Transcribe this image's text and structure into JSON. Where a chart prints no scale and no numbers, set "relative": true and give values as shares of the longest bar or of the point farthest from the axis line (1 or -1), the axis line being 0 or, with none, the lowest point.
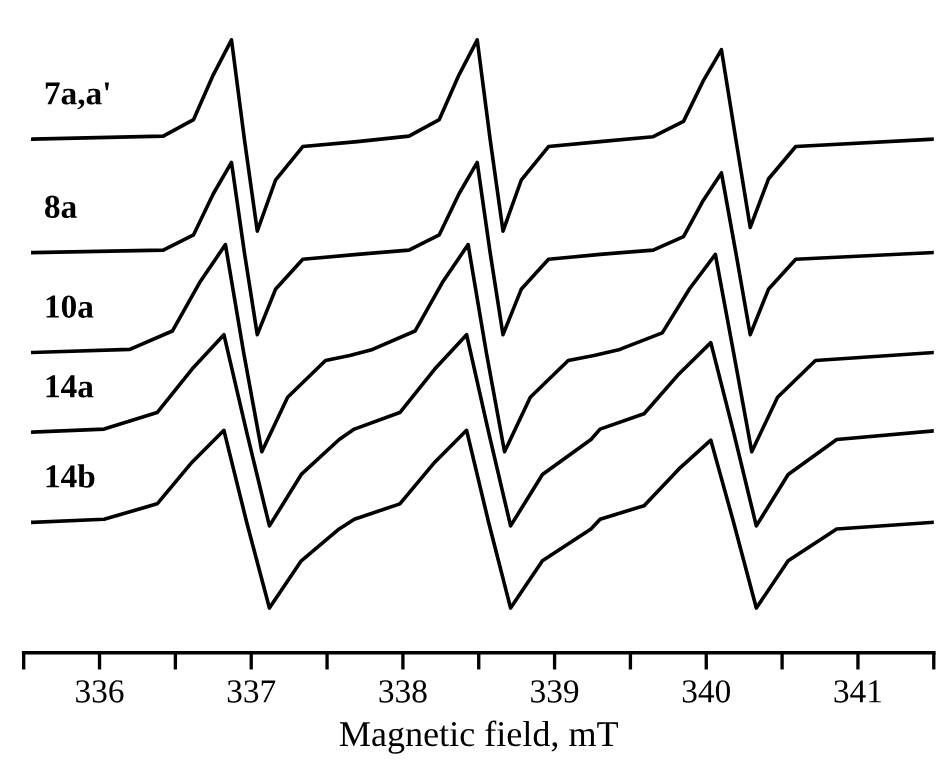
{
  "chart_data": {
    "type": "line",
    "relative": true,
    "xlabel": "Magnetic field, mT",
    "xlim": [
      335.5,
      341.5
    ],
    "xticks": [
      {
        "value": 335.5,
        "label": null
      },
      336,
      {
        "value": 336.5,
        "label": null
      },
      337,
      {
        "value": 337.5,
        "label": null
      },
      338,
      {
        "value": 338.5,
        "label": null
      },
      339,
      {
        "value": 339.5,
        "label": null
      },
      340,
      {
        "value": 340.5,
        "label": null
      },
      341,
      {
        "value": 341.5,
        "label": null
      }
    ],
    "grid": false,
    "legend": false,
    "marker": "none",
    "line_style": "solid",
    "series": [
      {
        "name": "7a,a'",
        "color": "#000000",
        "x": [
          335.56,
          336.42,
          336.62,
          336.75,
          336.87,
          336.955,
          337.04,
          337.16,
          337.34,
          337.7,
          338.04,
          338.24,
          338.37,
          338.49,
          338.575,
          338.66,
          338.78,
          338.96,
          339.3,
          339.65,
          339.85,
          339.98,
          340.1,
          340.195,
          340.29,
          340.41,
          340.59,
          341.5
        ],
        "values": [
          0.838,
          0.843,
          0.87,
          0.943,
          1.0,
          0.838,
          0.688,
          0.771,
          0.826,
          0.834,
          0.843,
          0.87,
          0.943,
          1.0,
          0.838,
          0.688,
          0.771,
          0.826,
          0.834,
          0.842,
          0.867,
          0.933,
          0.984,
          0.838,
          0.694,
          0.773,
          0.826,
          0.838
        ]
      },
      {
        "name": "8a",
        "color": "#000000",
        "x": [
          335.56,
          336.42,
          336.62,
          336.75,
          336.87,
          336.955,
          337.04,
          337.16,
          337.34,
          337.7,
          338.04,
          338.24,
          338.37,
          338.49,
          338.575,
          338.66,
          338.78,
          338.96,
          339.3,
          339.65,
          339.85,
          339.98,
          340.1,
          340.195,
          340.29,
          340.41,
          340.59,
          341.5
        ],
        "values": [
          0.653,
          0.657,
          0.682,
          0.749,
          0.8,
          0.653,
          0.519,
          0.593,
          0.642,
          0.65,
          0.657,
          0.682,
          0.749,
          0.8,
          0.653,
          0.519,
          0.593,
          0.642,
          0.65,
          0.657,
          0.679,
          0.738,
          0.783,
          0.653,
          0.519,
          0.593,
          0.642,
          0.653
        ]
      },
      {
        "name": "10a",
        "color": "#000000",
        "x": [
          335.56,
          336.2,
          336.48,
          336.66,
          336.83,
          336.95,
          337.07,
          337.24,
          337.49,
          337.65,
          337.8,
          338.08,
          338.26,
          338.43,
          338.55,
          338.67,
          338.84,
          339.09,
          339.26,
          339.43,
          339.71,
          339.89,
          340.06,
          340.18,
          340.3,
          340.47,
          340.72,
          341.5
        ],
        "values": [
          0.49,
          0.495,
          0.525,
          0.604,
          0.666,
          0.49,
          0.328,
          0.417,
          0.477,
          0.485,
          0.495,
          0.525,
          0.604,
          0.666,
          0.49,
          0.328,
          0.417,
          0.477,
          0.485,
          0.495,
          0.522,
          0.594,
          0.65,
          0.49,
          0.328,
          0.417,
          0.477,
          0.49
        ]
      },
      {
        "name": "14a",
        "color": "#000000",
        "x": [
          335.56,
          336.03,
          336.38,
          336.61,
          336.82,
          336.97,
          337.12,
          337.33,
          337.58,
          337.68,
          337.98,
          338.21,
          338.42,
          338.565,
          338.71,
          338.92,
          339.24,
          339.3,
          339.59,
          339.82,
          340.03,
          340.18,
          340.33,
          340.54,
          340.86,
          341.5
        ],
        "values": [
          0.36,
          0.365,
          0.392,
          0.463,
          0.519,
          0.36,
          0.207,
          0.291,
          0.348,
          0.365,
          0.392,
          0.463,
          0.519,
          0.36,
          0.207,
          0.291,
          0.348,
          0.365,
          0.39,
          0.455,
          0.506,
          0.36,
          0.207,
          0.291,
          0.348,
          0.362
        ]
      },
      {
        "name": "14b",
        "color": "#000000",
        "x": [
          335.56,
          336.03,
          336.38,
          336.61,
          336.82,
          336.97,
          337.12,
          337.33,
          337.58,
          337.68,
          337.98,
          338.21,
          338.42,
          338.565,
          338.71,
          338.92,
          339.24,
          339.3,
          339.59,
          339.82,
          340.03,
          340.18,
          340.33,
          340.54,
          340.86,
          341.5
        ],
        "values": [
          0.213,
          0.218,
          0.243,
          0.311,
          0.363,
          0.213,
          0.073,
          0.15,
          0.202,
          0.218,
          0.243,
          0.311,
          0.363,
          0.213,
          0.073,
          0.15,
          0.202,
          0.218,
          0.24,
          0.3,
          0.347,
          0.213,
          0.073,
          0.15,
          0.202,
          0.213
        ]
      }
    ]
  }
}
